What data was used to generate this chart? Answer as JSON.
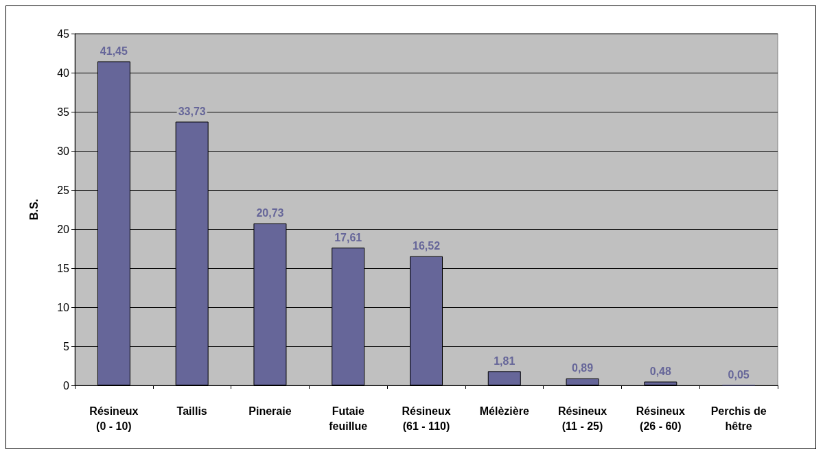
{
  "chart_data": {
    "type": "bar",
    "ylabel": "B.S.",
    "categories": [
      "Résineux\n(0 - 10)",
      "Taillis",
      "Pineraie",
      "Futaie\nfeuillue",
      "Résineux\n(61 - 110)",
      "Mélèzière",
      "Résineux\n(11 - 25)",
      "Résineux\n(26 - 60)",
      "Perchis de\nhêtre"
    ],
    "values": [
      41.45,
      33.73,
      20.73,
      17.61,
      16.52,
      1.81,
      0.89,
      0.48,
      0.05
    ],
    "value_labels": [
      "41,45",
      "33,73",
      "20,73",
      "17,61",
      "16,52",
      "1,81",
      "0,89",
      "0,48",
      "0,05"
    ],
    "color": "#666699",
    "ylim": [
      0,
      45
    ],
    "yticks": [
      0,
      5,
      10,
      15,
      20,
      25,
      30,
      35,
      40,
      45
    ],
    "grid": "y"
  }
}
